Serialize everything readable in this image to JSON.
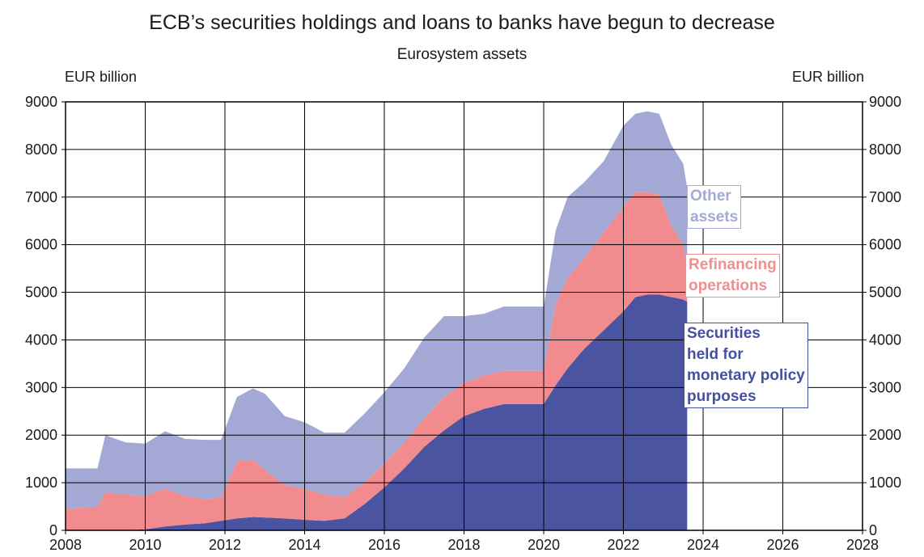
{
  "title": "ECB’s securities holdings and loans to banks have begun to decrease",
  "subtitle": "Eurosystem assets",
  "unit_left": "EUR billion",
  "unit_right": "EUR billion",
  "colors": {
    "securities": "#4b54a0",
    "refinancing": "#f28b8d",
    "other": "#a3a8d5",
    "grid": "#000000"
  },
  "labels": {
    "other": [
      "Other",
      "assets"
    ],
    "refinancing": [
      "Refinancing",
      "operations"
    ],
    "securities": [
      "Securities",
      "held for",
      "monetary policy",
      "purposes"
    ]
  },
  "chart_data": {
    "type": "area",
    "stacked": true,
    "title": "ECB’s securities holdings and loans to banks have begun to decrease",
    "subtitle": "Eurosystem assets",
    "ylabel": "EUR billion",
    "xlim": [
      2008,
      2028
    ],
    "ylim": [
      0,
      9000
    ],
    "x_ticks": [
      2008,
      2010,
      2012,
      2014,
      2016,
      2018,
      2020,
      2022,
      2024,
      2026,
      2028
    ],
    "y_ticks": [
      0,
      1000,
      2000,
      3000,
      4000,
      5000,
      6000,
      7000,
      8000,
      9000
    ],
    "grid": true,
    "x": [
      2008.0,
      2008.8,
      2009.0,
      2009.5,
      2010.0,
      2010.5,
      2011.0,
      2011.5,
      2011.9,
      2012.3,
      2012.7,
      2013.0,
      2013.5,
      2014.0,
      2014.5,
      2015.0,
      2015.5,
      2016.0,
      2016.5,
      2017.0,
      2017.5,
      2018.0,
      2018.5,
      2019.0,
      2019.5,
      2020.0,
      2020.3,
      2020.6,
      2021.0,
      2021.5,
      2022.0,
      2022.3,
      2022.6,
      2022.9,
      2023.2,
      2023.5,
      2023.6
    ],
    "series": [
      {
        "name": "Securities held for monetary policy purposes",
        "values": [
          0,
          0,
          0,
          0,
          20,
          80,
          120,
          150,
          200,
          250,
          280,
          270,
          250,
          220,
          200,
          250,
          550,
          900,
          1300,
          1750,
          2100,
          2400,
          2550,
          2650,
          2650,
          2650,
          3050,
          3400,
          3800,
          4200,
          4600,
          4900,
          4950,
          4950,
          4900,
          4850,
          4800
        ]
      },
      {
        "name": "Refinancing operations",
        "values": [
          450,
          500,
          800,
          750,
          700,
          800,
          600,
          500,
          500,
          1200,
          1200,
          1000,
          700,
          650,
          550,
          450,
          450,
          500,
          550,
          600,
          700,
          700,
          700,
          700,
          700,
          700,
          1700,
          1900,
          1900,
          2050,
          2200,
          2200,
          2150,
          2100,
          1500,
          1150,
          650
        ]
      },
      {
        "name": "Other assets",
        "values": [
          850,
          800,
          1200,
          1100,
          1100,
          1200,
          1200,
          1250,
          1200,
          1350,
          1500,
          1600,
          1450,
          1400,
          1300,
          1350,
          1450,
          1500,
          1550,
          1700,
          1700,
          1400,
          1300,
          1350,
          1350,
          1350,
          1550,
          1700,
          1600,
          1500,
          1700,
          1650,
          1700,
          1700,
          1700,
          1700,
          1750
        ]
      }
    ]
  }
}
